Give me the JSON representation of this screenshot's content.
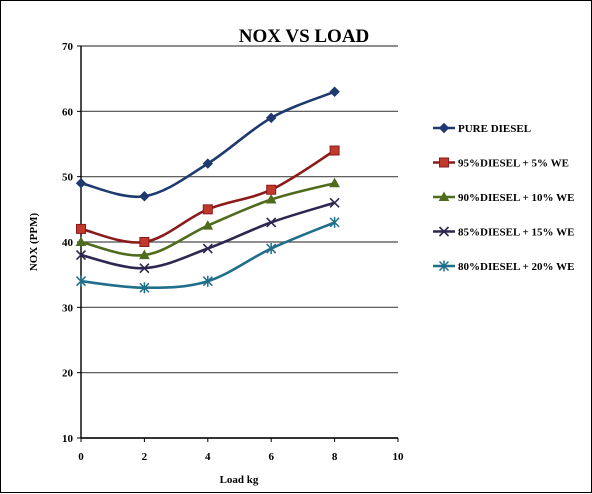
{
  "chart_data": {
    "type": "line",
    "title": "NOX VS LOAD",
    "xlabel": "Load kg",
    "ylabel": "NOX (PPM)",
    "xlim": [
      0,
      10
    ],
    "ylim": [
      10,
      70
    ],
    "xticks": [
      0,
      2,
      4,
      6,
      8,
      10
    ],
    "yticks": [
      10,
      20,
      30,
      40,
      50,
      60,
      70
    ],
    "grid": "horizontal",
    "legend_position": "right",
    "x": [
      0,
      2,
      4,
      6,
      8
    ],
    "series": [
      {
        "name": "PURE DIESEL",
        "values": [
          49,
          47,
          52,
          59,
          63
        ],
        "color": "#1f3a6e",
        "marker": "diamond"
      },
      {
        "name": "95%DIESEL + 5% WE",
        "values": [
          42,
          40,
          45,
          48,
          54
        ],
        "color": "#8b1a1a",
        "marker": "square"
      },
      {
        "name": "90%DIESEL + 10% WE",
        "values": [
          40,
          38,
          42.5,
          46.5,
          49
        ],
        "color": "#4f6b1e",
        "marker": "triangle"
      },
      {
        "name": "85%DIESEL + 15% WE",
        "values": [
          38,
          36,
          39,
          43,
          46
        ],
        "color": "#2f2750",
        "marker": "x"
      },
      {
        "name": "80%DIESEL + 20% WE",
        "values": [
          34,
          33,
          34,
          39,
          43
        ],
        "color": "#1f6f8b",
        "marker": "star"
      }
    ]
  }
}
